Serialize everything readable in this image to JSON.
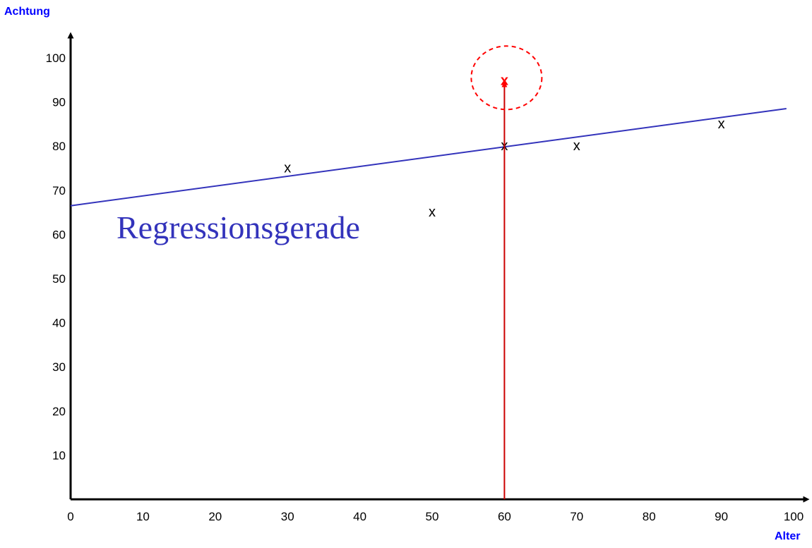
{
  "chart_data": {
    "type": "scatter",
    "title": "",
    "xlabel": "Alter",
    "ylabel": "Achtung",
    "xlim": [
      0,
      100
    ],
    "ylim": [
      0,
      100
    ],
    "x_ticks": [
      0,
      10,
      20,
      30,
      40,
      50,
      60,
      70,
      80,
      90,
      100
    ],
    "y_ticks": [
      10,
      20,
      30,
      40,
      50,
      60,
      70,
      80,
      90,
      100
    ],
    "grid": false,
    "point_marker": "x",
    "series": [
      {
        "values": [
          {
            "x": 30,
            "y": 75
          },
          {
            "x": 50,
            "y": 65
          },
          {
            "x": 60,
            "y": 80
          },
          {
            "x": 70,
            "y": 80
          },
          {
            "x": 90,
            "y": 85
          }
        ]
      }
    ],
    "highlighted_point": {
      "x": 60,
      "y": 95,
      "marker": "x",
      "color": "#ff0000"
    },
    "regression_line": {
      "label": "Regressionsgerade",
      "color": "#3333bb",
      "from": {
        "x": 0,
        "y": 66.5
      },
      "to": {
        "x": 99,
        "y": 88.5
      }
    },
    "arrow": {
      "x": 60,
      "from_y": 0,
      "to_y": 94,
      "color": "#cc0000"
    },
    "colors": {
      "axis": "#000000",
      "axis_title": "#0000ff",
      "points": "#000000",
      "highlight": "#ff0000",
      "circle": "#ff0000"
    }
  }
}
